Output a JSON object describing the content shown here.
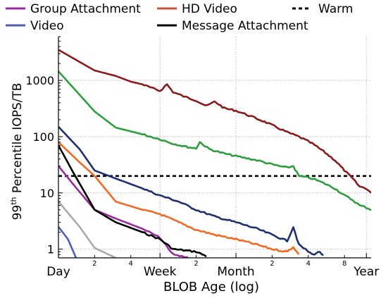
{
  "chart_data": {
    "type": "line",
    "title": "",
    "xlabel": "BLOB Age (log)",
    "ylabel_base": "99",
    "ylabel_sup": "th",
    "ylabel_rest": " Percentile IOPS/TB",
    "x_scale": "log",
    "y_scale": "log",
    "xlim_days": [
      1,
      400
    ],
    "ylim": [
      0.7,
      6000
    ],
    "grid": true,
    "legend_position": "top",
    "x_major_ticks": [
      {
        "days": 1,
        "label": "Day"
      },
      {
        "days": 7,
        "label": "Week"
      },
      {
        "days": 30,
        "label": "Month"
      },
      {
        "days": 365,
        "label": "Year"
      }
    ],
    "x_minor_ticks": [
      {
        "days": 2,
        "label": "2"
      },
      {
        "days": 4,
        "label": "4"
      },
      {
        "days": 14,
        "label": "2"
      },
      {
        "days": 60,
        "label": "2"
      },
      {
        "days": 120,
        "label": "4"
      },
      {
        "days": 240,
        "label": "8"
      }
    ],
    "y_ticks": [
      {
        "value": 1,
        "label": "1"
      },
      {
        "value": 10,
        "label": "10"
      },
      {
        "value": 100,
        "label": "100"
      },
      {
        "value": 1000,
        "label": "1000"
      }
    ],
    "reference_line": {
      "name": "Warm",
      "value": 20,
      "color": "#000000",
      "style": "dashed"
    },
    "series": [
      {
        "name": "Group Attachment",
        "color": "#9b2a9e",
        "in_legend": true,
        "points": [
          [
            1,
            30
          ],
          [
            1.3,
            15
          ],
          [
            2,
            5
          ],
          [
            3,
            3.5
          ],
          [
            5,
            2.3
          ],
          [
            7,
            1.6
          ],
          [
            9,
            0.8
          ],
          [
            12,
            0.7
          ]
        ]
      },
      {
        "name": "HD Video",
        "color": "#c8553d",
        "in_legend": true,
        "points": []
      },
      {
        "name": "Video",
        "color": "#5060b0",
        "in_legend": true,
        "points": [
          [
            1,
            2.5
          ],
          [
            1.2,
            1.5
          ],
          [
            1.4,
            0.7
          ]
        ]
      },
      {
        "name": "Message Attachment",
        "color": "#000000",
        "in_legend": true,
        "points": [
          [
            1,
            70
          ],
          [
            1.3,
            25
          ],
          [
            2,
            5
          ],
          [
            3,
            3
          ],
          [
            5,
            2
          ],
          [
            7,
            1.5
          ],
          [
            9,
            1
          ],
          [
            14,
            0.9
          ],
          [
            17,
            0.75
          ]
        ]
      },
      {
        "color": "#8b1a1a",
        "in_legend": false,
        "points": [
          [
            1,
            3500
          ],
          [
            2,
            1500
          ],
          [
            3,
            1200
          ],
          [
            4,
            950
          ],
          [
            5,
            850
          ],
          [
            6,
            730
          ],
          [
            7,
            650
          ],
          [
            8,
            850
          ],
          [
            9,
            620
          ],
          [
            11,
            520
          ],
          [
            14,
            440
          ],
          [
            17,
            350
          ],
          [
            20,
            420
          ],
          [
            24,
            320
          ],
          [
            30,
            290
          ],
          [
            40,
            230
          ],
          [
            50,
            190
          ],
          [
            60,
            160
          ],
          [
            80,
            120
          ],
          [
            100,
            100
          ],
          [
            130,
            75
          ],
          [
            160,
            55
          ],
          [
            200,
            38
          ],
          [
            240,
            25
          ],
          [
            280,
            18
          ],
          [
            320,
            13
          ],
          [
            365,
            12
          ],
          [
            400,
            10
          ]
        ]
      },
      {
        "color": "#2e9e3e",
        "in_legend": false,
        "points": [
          [
            1,
            1450
          ],
          [
            2,
            280
          ],
          [
            3,
            145
          ],
          [
            5,
            110
          ],
          [
            7,
            90
          ],
          [
            9,
            75
          ],
          [
            12,
            65
          ],
          [
            14,
            62
          ],
          [
            15,
            80
          ],
          [
            18,
            60
          ],
          [
            24,
            50
          ],
          [
            30,
            45
          ],
          [
            45,
            38
          ],
          [
            60,
            32
          ],
          [
            80,
            28
          ],
          [
            90,
            30
          ],
          [
            100,
            20
          ],
          [
            130,
            18
          ],
          [
            160,
            15
          ],
          [
            200,
            12
          ],
          [
            240,
            9
          ],
          [
            280,
            7.5
          ],
          [
            320,
            6
          ],
          [
            365,
            5.5
          ],
          [
            400,
            5
          ]
        ]
      },
      {
        "color": "#1f2f6e",
        "in_legend": false,
        "points": [
          [
            1,
            150
          ],
          [
            1.5,
            60
          ],
          [
            2,
            25
          ],
          [
            3,
            18
          ],
          [
            5,
            12
          ],
          [
            7,
            9
          ],
          [
            10,
            7
          ],
          [
            14,
            5
          ],
          [
            20,
            3.8
          ],
          [
            30,
            3
          ],
          [
            45,
            2.3
          ],
          [
            60,
            1.8
          ],
          [
            80,
            1.4
          ],
          [
            90,
            2.5
          ],
          [
            100,
            1.2
          ],
          [
            130,
            0.8
          ],
          [
            150,
            0.9
          ],
          [
            160,
            0.75
          ]
        ]
      },
      {
        "color": "#f26a21",
        "in_legend": false,
        "points": [
          [
            1,
            80
          ],
          [
            1.5,
            35
          ],
          [
            2,
            20
          ],
          [
            3,
            7
          ],
          [
            5,
            5
          ],
          [
            7,
            4.2
          ],
          [
            10,
            3
          ],
          [
            14,
            2.2
          ],
          [
            20,
            1.8
          ],
          [
            30,
            1.5
          ],
          [
            45,
            1.2
          ],
          [
            60,
            1
          ],
          [
            80,
            0.9
          ],
          [
            90,
            1.1
          ],
          [
            100,
            0.8
          ]
        ]
      },
      {
        "color": "#aaaaaa",
        "in_legend": false,
        "points": [
          [
            1,
            7
          ],
          [
            1.5,
            2.5
          ],
          [
            2,
            1.05
          ],
          [
            3,
            0.7
          ]
        ]
      }
    ]
  }
}
